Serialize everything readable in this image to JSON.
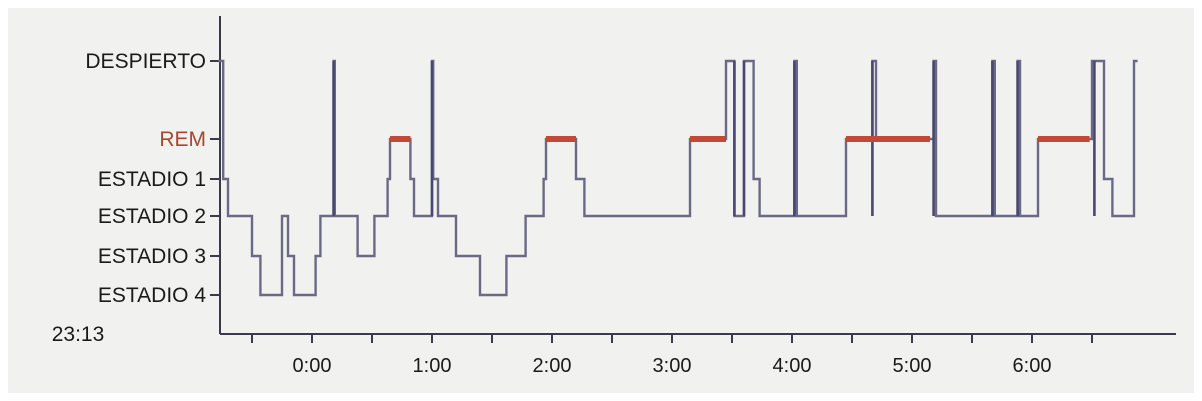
{
  "chart_data": {
    "type": "line",
    "title": "",
    "xlabel": "",
    "ylabel": "",
    "start_time_label": "23:13",
    "x_ticks": [
      "0:00",
      "1:00",
      "2:00",
      "3:00",
      "4:00",
      "5:00",
      "6:00"
    ],
    "x_range_hours_after_midnight": [
      -0.78,
      6.9
    ],
    "y_levels": [
      "DESPIERTO",
      "REM",
      "ESTADIO 1",
      "ESTADIO 2",
      "ESTADIO 3",
      "ESTADIO 4"
    ],
    "grid": false,
    "colors": {
      "rem": "#c04a33",
      "hypnogram": "#6a6a86",
      "axis": "#3a3a4a"
    },
    "series": [
      {
        "values_note": "x = time in hours after midnight, y = sleep stage",
        "points": [
          [
            -0.78,
            "DESPIERTO"
          ],
          [
            -0.74,
            "ESTADIO 1"
          ],
          [
            -0.7,
            "ESTADIO 2"
          ],
          [
            -0.5,
            "ESTADIO 3"
          ],
          [
            -0.43,
            "ESTADIO 4"
          ],
          [
            -0.25,
            "ESTADIO 2"
          ],
          [
            -0.2,
            "ESTADIO 3"
          ],
          [
            -0.15,
            "ESTADIO 4"
          ],
          [
            0.03,
            "ESTADIO 3"
          ],
          [
            0.07,
            "ESTADIO 2"
          ],
          [
            0.18,
            "DESPIERTO"
          ],
          [
            0.19,
            "ESTADIO 2"
          ],
          [
            0.38,
            "ESTADIO 3"
          ],
          [
            0.52,
            "ESTADIO 2"
          ],
          [
            0.63,
            "ESTADIO 1"
          ],
          [
            0.65,
            "REM"
          ],
          [
            0.82,
            "ESTADIO 1"
          ],
          [
            0.85,
            "ESTADIO 2"
          ],
          [
            1.0,
            "DESPIERTO"
          ],
          [
            1.01,
            "ESTADIO 1"
          ],
          [
            1.05,
            "ESTADIO 2"
          ],
          [
            1.2,
            "ESTADIO 3"
          ],
          [
            1.4,
            "ESTADIO 4"
          ],
          [
            1.62,
            "ESTADIO 3"
          ],
          [
            1.78,
            "ESTADIO 2"
          ],
          [
            1.93,
            "ESTADIO 1"
          ],
          [
            1.95,
            "REM"
          ],
          [
            2.2,
            "ESTADIO 1"
          ],
          [
            2.27,
            "ESTADIO 2"
          ],
          [
            3.15,
            "REM"
          ],
          [
            3.45,
            "DESPIERTO"
          ],
          [
            3.52,
            "ESTADIO 2"
          ],
          [
            3.6,
            "DESPIERTO"
          ],
          [
            3.68,
            "ESTADIO 1"
          ],
          [
            3.73,
            "ESTADIO 2"
          ],
          [
            4.02,
            "DESPIERTO"
          ],
          [
            4.04,
            "ESTADIO 2"
          ],
          [
            4.45,
            "REM"
          ],
          [
            4.67,
            "DESPIERTO"
          ],
          [
            4.7,
            "REM"
          ],
          [
            5.18,
            "DESPIERTO"
          ],
          [
            5.2,
            "ESTADIO 2"
          ],
          [
            5.67,
            "DESPIERTO"
          ],
          [
            5.69,
            "ESTADIO 2"
          ],
          [
            5.88,
            "DESPIERTO"
          ],
          [
            5.9,
            "ESTADIO 2"
          ],
          [
            6.05,
            "REM"
          ],
          [
            6.5,
            "DESPIERTO"
          ],
          [
            6.6,
            "ESTADIO 1"
          ],
          [
            6.67,
            "ESTADIO 2"
          ],
          [
            6.85,
            "DESPIERTO"
          ]
        ],
        "rem_periods": [
          [
            0.65,
            0.82
          ],
          [
            1.95,
            2.2
          ],
          [
            3.15,
            3.45
          ],
          [
            4.45,
            5.15
          ],
          [
            6.05,
            6.48
          ]
        ],
        "awake_spikes": [
          0.18,
          1.0,
          3.52,
          3.6,
          4.02,
          4.67,
          5.18,
          5.67,
          5.88,
          6.52
        ]
      }
    ]
  }
}
